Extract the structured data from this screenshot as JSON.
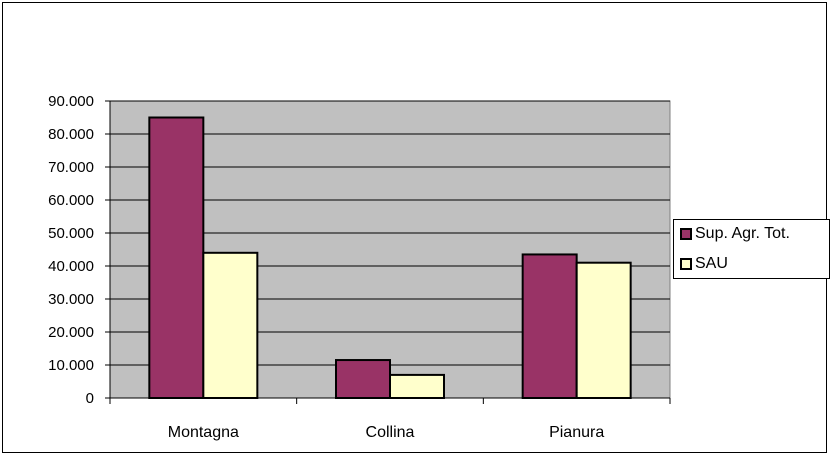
{
  "chart_data": {
    "type": "bar",
    "categories": [
      "Montagna",
      "Collina",
      "Pianura"
    ],
    "series": [
      {
        "name": "Sup. Agr. Tot.",
        "values": [
          85000,
          11500,
          43500
        ],
        "color": "#993366"
      },
      {
        "name": "SAU",
        "values": [
          44000,
          7000,
          41000
        ],
        "color": "#FFFFCC"
      }
    ],
    "yticks": [
      "0",
      "10.000",
      "20.000",
      "30.000",
      "40.000",
      "50.000",
      "60.000",
      "70.000",
      "80.000",
      "90.000"
    ],
    "ylim": [
      0,
      90000
    ],
    "grid": true,
    "plot_background": "#C0C0C0",
    "legend_position": "right"
  }
}
